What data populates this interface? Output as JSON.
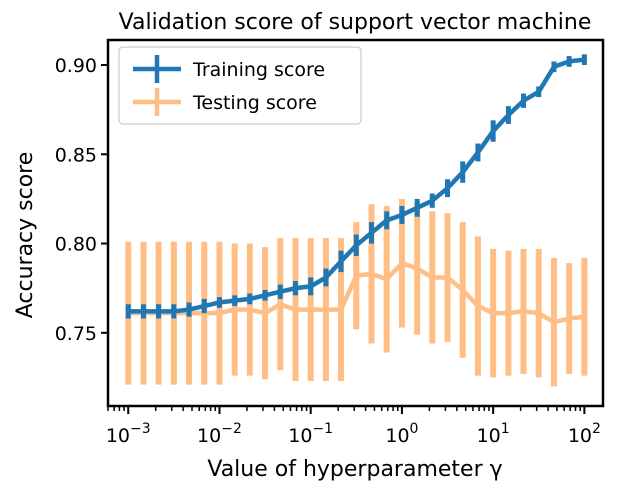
{
  "chart_data": {
    "type": "line",
    "title": "Validation score of support vector machine",
    "xlabel": "Value of hyperparameter γ",
    "ylabel": "Accuracy score",
    "xscale": "log",
    "xlim": [
      0.0006,
      160
    ],
    "ylim": [
      0.709,
      0.914
    ],
    "grid": false,
    "legend_position": "top-left",
    "x_ticks": [
      {
        "value": 0.001,
        "base": "10",
        "exp": "−3"
      },
      {
        "value": 0.01,
        "base": "10",
        "exp": "−2"
      },
      {
        "value": 0.1,
        "base": "10",
        "exp": "−1"
      },
      {
        "value": 1,
        "base": "10",
        "exp": "0"
      },
      {
        "value": 10,
        "base": "10",
        "exp": "1"
      },
      {
        "value": 100,
        "base": "10",
        "exp": "2"
      }
    ],
    "y_ticks": [
      {
        "value": 0.75,
        "label": "0.75"
      },
      {
        "value": 0.8,
        "label": "0.80"
      },
      {
        "value": 0.85,
        "label": "0.85"
      },
      {
        "value": 0.9,
        "label": "0.90"
      }
    ],
    "x": [
      0.001,
      0.00147,
      0.00215,
      0.00316,
      0.00464,
      0.00681,
      0.01,
      0.0147,
      0.0215,
      0.0316,
      0.0464,
      0.0681,
      0.1,
      0.147,
      0.215,
      0.316,
      0.464,
      0.681,
      1,
      1.47,
      2.15,
      3.16,
      4.64,
      6.81,
      10,
      14.7,
      21.5,
      31.6,
      46.4,
      68.1,
      100
    ],
    "series": [
      {
        "name": "Training score",
        "color": "#1f77b4",
        "values": [
          0.762,
          0.762,
          0.762,
          0.762,
          0.763,
          0.765,
          0.767,
          0.768,
          0.769,
          0.771,
          0.773,
          0.775,
          0.776,
          0.781,
          0.79,
          0.799,
          0.806,
          0.813,
          0.816,
          0.82,
          0.824,
          0.831,
          0.84,
          0.851,
          0.863,
          0.872,
          0.88,
          0.885,
          0.899,
          0.902,
          0.903
        ],
        "errors": [
          0.004,
          0.004,
          0.004,
          0.004,
          0.004,
          0.004,
          0.003,
          0.003,
          0.003,
          0.003,
          0.004,
          0.004,
          0.005,
          0.005,
          0.006,
          0.006,
          0.006,
          0.005,
          0.005,
          0.005,
          0.004,
          0.005,
          0.006,
          0.005,
          0.006,
          0.005,
          0.004,
          0.003,
          0.003,
          0.003,
          0.003
        ]
      },
      {
        "name": "Testing score",
        "color": "#ff7f0e",
        "values": [
          0.761,
          0.761,
          0.761,
          0.761,
          0.761,
          0.761,
          0.761,
          0.763,
          0.763,
          0.761,
          0.766,
          0.763,
          0.763,
          0.763,
          0.763,
          0.782,
          0.783,
          0.78,
          0.789,
          0.786,
          0.781,
          0.781,
          0.774,
          0.765,
          0.761,
          0.761,
          0.762,
          0.761,
          0.756,
          0.758,
          0.759
        ],
        "errors": [
          0.04,
          0.04,
          0.04,
          0.04,
          0.04,
          0.04,
          0.04,
          0.037,
          0.037,
          0.037,
          0.037,
          0.04,
          0.04,
          0.04,
          0.04,
          0.03,
          0.039,
          0.041,
          0.036,
          0.037,
          0.037,
          0.036,
          0.038,
          0.039,
          0.036,
          0.035,
          0.035,
          0.036,
          0.036,
          0.031,
          0.033
        ]
      }
    ]
  }
}
